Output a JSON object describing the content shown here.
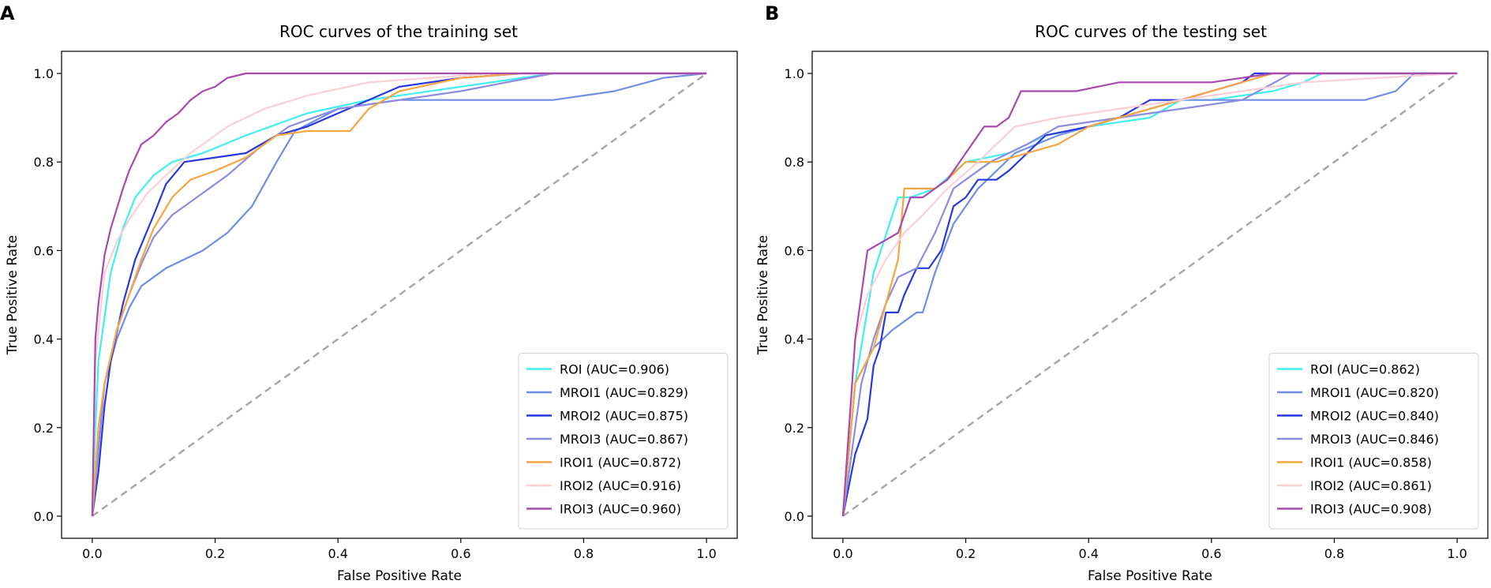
{
  "chart_data": [
    {
      "type": "line",
      "panel_label": "A",
      "title": "ROC curves of the training set",
      "xlabel": "False Positive Rate",
      "ylabel": "True Positive Rate",
      "xlim": [
        -0.05,
        1.05
      ],
      "ylim": [
        -0.05,
        1.05
      ],
      "xticks": [
        "0.0",
        "0.2",
        "0.4",
        "0.6",
        "0.8",
        "1.0"
      ],
      "yticks": [
        "0.0",
        "0.2",
        "0.4",
        "0.6",
        "0.8",
        "1.0"
      ],
      "legend_position": "lower-right",
      "diagonal": {
        "color": "#a6a6a6"
      },
      "series": [
        {
          "name": "ROI",
          "label": "ROI (AUC=0.906)",
          "color": "#40f0f0",
          "x": [
            0,
            0.005,
            0.01,
            0.02,
            0.03,
            0.05,
            0.07,
            0.1,
            0.13,
            0.18,
            0.25,
            0.35,
            0.45,
            0.6,
            0.75,
            1
          ],
          "y": [
            0,
            0.2,
            0.35,
            0.45,
            0.55,
            0.65,
            0.72,
            0.77,
            0.8,
            0.82,
            0.86,
            0.91,
            0.94,
            0.97,
            1,
            1
          ]
        },
        {
          "name": "MROI1",
          "label": "MROI1 (AUC=0.829)",
          "color": "#6f8fe6",
          "x": [
            0,
            0.01,
            0.02,
            0.04,
            0.06,
            0.08,
            0.12,
            0.18,
            0.22,
            0.26,
            0.3,
            0.33,
            0.4,
            0.5,
            0.6,
            0.7,
            0.75,
            0.85,
            0.93,
            1
          ],
          "y": [
            0,
            0.15,
            0.3,
            0.4,
            0.47,
            0.52,
            0.56,
            0.6,
            0.64,
            0.7,
            0.8,
            0.87,
            0.92,
            0.94,
            0.94,
            0.94,
            0.94,
            0.96,
            0.99,
            1
          ]
        },
        {
          "name": "MROI2",
          "label": "MROI2 (AUC=0.875)",
          "color": "#2838e0",
          "x": [
            0,
            0.01,
            0.02,
            0.03,
            0.05,
            0.07,
            0.1,
            0.12,
            0.15,
            0.2,
            0.25,
            0.3,
            0.35,
            0.45,
            0.5,
            0.6,
            0.7,
            1
          ],
          "y": [
            0,
            0.1,
            0.25,
            0.35,
            0.48,
            0.58,
            0.68,
            0.75,
            0.8,
            0.81,
            0.82,
            0.86,
            0.88,
            0.94,
            0.97,
            0.99,
            1,
            1
          ]
        },
        {
          "name": "MROI3",
          "label": "MROI3 (AUC=0.867)",
          "color": "#8c8ce0",
          "x": [
            0,
            0.01,
            0.02,
            0.04,
            0.06,
            0.08,
            0.1,
            0.13,
            0.17,
            0.22,
            0.27,
            0.32,
            0.4,
            0.5,
            0.6,
            0.75,
            1
          ],
          "y": [
            0,
            0.15,
            0.3,
            0.42,
            0.5,
            0.57,
            0.63,
            0.68,
            0.72,
            0.77,
            0.83,
            0.88,
            0.92,
            0.94,
            0.96,
            1,
            1
          ]
        },
        {
          "name": "IROI1",
          "label": "IROI1 (AUC=0.872)",
          "color": "#f5a640",
          "x": [
            0,
            0.01,
            0.02,
            0.04,
            0.06,
            0.08,
            0.1,
            0.13,
            0.16,
            0.2,
            0.25,
            0.3,
            0.35,
            0.42,
            0.45,
            0.5,
            0.6,
            0.7,
            1
          ],
          "y": [
            0,
            0.2,
            0.3,
            0.42,
            0.5,
            0.58,
            0.65,
            0.72,
            0.76,
            0.78,
            0.81,
            0.86,
            0.87,
            0.87,
            0.92,
            0.96,
            0.99,
            1,
            1
          ]
        },
        {
          "name": "IROI2",
          "label": "IROI2 (AUC=0.916)",
          "color": "#fbcfd6",
          "x": [
            0,
            0.005,
            0.02,
            0.04,
            0.06,
            0.09,
            0.12,
            0.16,
            0.22,
            0.28,
            0.35,
            0.45,
            0.55,
            0.65,
            1
          ],
          "y": [
            0,
            0.35,
            0.55,
            0.62,
            0.67,
            0.73,
            0.77,
            0.82,
            0.88,
            0.92,
            0.95,
            0.98,
            0.99,
            1,
            1
          ]
        },
        {
          "name": "IROI3",
          "label": "IROI3 (AUC=0.960)",
          "color": "#a84aae",
          "x": [
            0,
            0.005,
            0.01,
            0.02,
            0.03,
            0.05,
            0.06,
            0.08,
            0.1,
            0.12,
            0.14,
            0.16,
            0.18,
            0.2,
            0.22,
            0.25,
            0.3,
            1
          ],
          "y": [
            0,
            0.4,
            0.48,
            0.59,
            0.65,
            0.74,
            0.78,
            0.84,
            0.86,
            0.89,
            0.91,
            0.94,
            0.96,
            0.97,
            0.99,
            1,
            1,
            1
          ]
        }
      ]
    },
    {
      "type": "line",
      "panel_label": "B",
      "title": "ROC curves of the testing set",
      "xlabel": "False Positive Rate",
      "ylabel": "True Positive Rate",
      "xlim": [
        -0.05,
        1.05
      ],
      "ylim": [
        -0.05,
        1.05
      ],
      "xticks": [
        "0.0",
        "0.2",
        "0.4",
        "0.6",
        "0.8",
        "1.0"
      ],
      "yticks": [
        "0.0",
        "0.2",
        "0.4",
        "0.6",
        "0.8",
        "1.0"
      ],
      "legend_position": "lower-right",
      "diagonal": {
        "color": "#a6a6a6"
      },
      "series": [
        {
          "name": "ROI",
          "label": "ROI (AUC=0.862)",
          "color": "#40f0f0",
          "x": [
            0,
            0.02,
            0.05,
            0.09,
            0.11,
            0.15,
            0.2,
            0.27,
            0.33,
            0.4,
            0.5,
            0.55,
            0.6,
            0.7,
            0.75,
            0.78,
            1
          ],
          "y": [
            0,
            0.3,
            0.55,
            0.72,
            0.72,
            0.74,
            0.8,
            0.82,
            0.86,
            0.88,
            0.9,
            0.94,
            0.94,
            0.96,
            0.98,
            1,
            1
          ]
        },
        {
          "name": "MROI1",
          "label": "MROI1 (AUC=0.820)",
          "color": "#6f8fe6",
          "x": [
            0,
            0.02,
            0.05,
            0.08,
            0.1,
            0.12,
            0.13,
            0.15,
            0.18,
            0.22,
            0.28,
            0.35,
            0.45,
            0.55,
            0.7,
            0.85,
            0.9,
            0.93,
            1
          ],
          "y": [
            0,
            0.3,
            0.38,
            0.42,
            0.44,
            0.46,
            0.46,
            0.55,
            0.66,
            0.74,
            0.82,
            0.86,
            0.9,
            0.94,
            0.94,
            0.94,
            0.96,
            1,
            1
          ]
        },
        {
          "name": "MROI2",
          "label": "MROI2 (AUC=0.840)",
          "color": "#2838e0",
          "x": [
            0,
            0.02,
            0.04,
            0.05,
            0.06,
            0.07,
            0.09,
            0.1,
            0.12,
            0.14,
            0.16,
            0.18,
            0.2,
            0.22,
            0.25,
            0.27,
            0.3,
            0.33,
            0.4,
            0.45,
            0.5,
            0.55,
            0.6,
            0.65,
            0.67,
            1
          ],
          "y": [
            0,
            0.14,
            0.22,
            0.34,
            0.38,
            0.46,
            0.46,
            0.5,
            0.56,
            0.56,
            0.6,
            0.7,
            0.72,
            0.76,
            0.76,
            0.78,
            0.82,
            0.86,
            0.88,
            0.9,
            0.94,
            0.94,
            0.96,
            0.98,
            1,
            1
          ]
        },
        {
          "name": "MROI3",
          "label": "MROI3 (AUC=0.846)",
          "color": "#8c8ce0",
          "x": [
            0,
            0.03,
            0.05,
            0.07,
            0.09,
            0.12,
            0.15,
            0.18,
            0.2,
            0.24,
            0.3,
            0.35,
            0.45,
            0.55,
            0.65,
            0.73,
            1
          ],
          "y": [
            0,
            0.3,
            0.4,
            0.48,
            0.54,
            0.56,
            0.64,
            0.74,
            0.76,
            0.8,
            0.84,
            0.88,
            0.9,
            0.92,
            0.94,
            1,
            1
          ]
        },
        {
          "name": "IROI1",
          "label": "IROI1 (AUC=0.858)",
          "color": "#f5a640",
          "x": [
            0,
            0.02,
            0.05,
            0.07,
            0.09,
            0.1,
            0.12,
            0.15,
            0.17,
            0.2,
            0.25,
            0.3,
            0.35,
            0.4,
            0.45,
            0.5,
            0.55,
            0.6,
            0.7,
            1
          ],
          "y": [
            0,
            0.3,
            0.38,
            0.48,
            0.58,
            0.74,
            0.74,
            0.74,
            0.76,
            0.8,
            0.8,
            0.82,
            0.84,
            0.88,
            0.9,
            0.92,
            0.94,
            0.96,
            1,
            1
          ]
        },
        {
          "name": "IROI2",
          "label": "IROI2 (AUC=0.861)",
          "color": "#fbcfd6",
          "x": [
            0,
            0.02,
            0.04,
            0.07,
            0.1,
            0.13,
            0.17,
            0.22,
            0.28,
            0.35,
            0.45,
            0.55,
            0.65,
            0.75,
            1
          ],
          "y": [
            0,
            0.4,
            0.5,
            0.58,
            0.64,
            0.68,
            0.74,
            0.8,
            0.88,
            0.9,
            0.92,
            0.94,
            0.96,
            0.98,
            1
          ]
        },
        {
          "name": "IROI3",
          "label": "IROI3 (AUC=0.908)",
          "color": "#a84aae",
          "x": [
            0,
            0.02,
            0.04,
            0.09,
            0.1,
            0.11,
            0.13,
            0.15,
            0.17,
            0.19,
            0.21,
            0.23,
            0.25,
            0.27,
            0.29,
            0.35,
            0.38,
            0.45,
            0.6,
            0.7,
            1
          ],
          "y": [
            0,
            0.4,
            0.6,
            0.64,
            0.68,
            0.72,
            0.72,
            0.74,
            0.76,
            0.8,
            0.84,
            0.88,
            0.88,
            0.9,
            0.96,
            0.96,
            0.96,
            0.98,
            0.98,
            1,
            1
          ]
        }
      ]
    }
  ]
}
